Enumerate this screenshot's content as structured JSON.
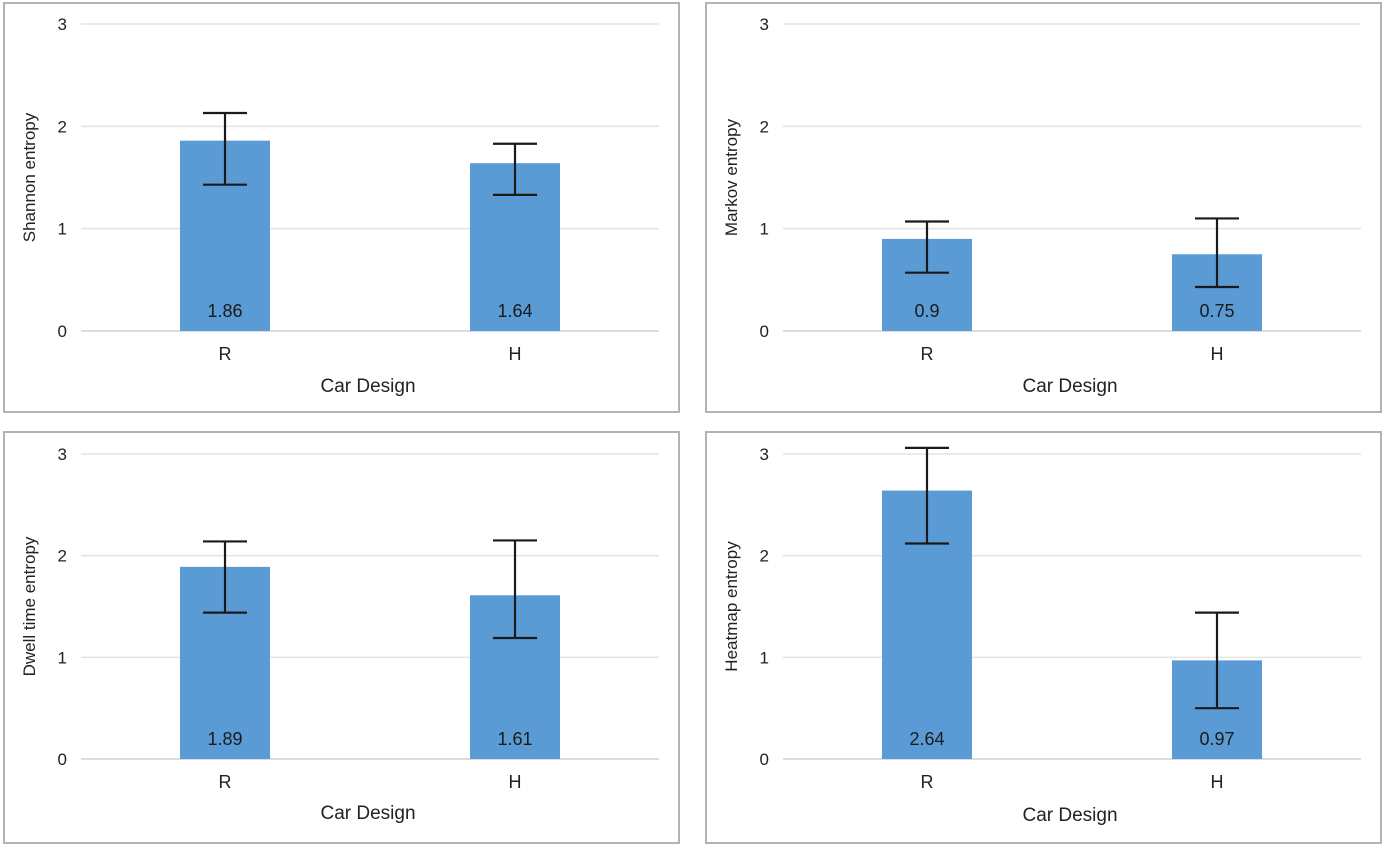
{
  "chart_data": [
    {
      "type": "bar",
      "categories": [
        "R",
        "H"
      ],
      "values": [
        1.86,
        1.64
      ],
      "data_labels": [
        "1.86",
        "1.64"
      ],
      "error_bars": [
        {
          "low": 1.43,
          "high": 2.13
        },
        {
          "low": 1.33,
          "high": 1.83
        }
      ],
      "xlabel": "Car Design",
      "ylabel": "Shannon entropy",
      "ylim": [
        0,
        3
      ],
      "yticks": [
        "0",
        "1",
        "2",
        "3"
      ],
      "grid": true,
      "bar_color": "#5b9bd5"
    },
    {
      "type": "bar",
      "categories": [
        "R",
        "H"
      ],
      "values": [
        0.9,
        0.75
      ],
      "data_labels": [
        "0.9",
        "0.75"
      ],
      "error_bars": [
        {
          "low": 0.57,
          "high": 1.07
        },
        {
          "low": 0.43,
          "high": 1.1
        }
      ],
      "xlabel": "Car Design",
      "ylabel": "Markov entropy",
      "ylim": [
        0,
        3
      ],
      "yticks": [
        "0",
        "1",
        "2",
        "3"
      ],
      "grid": true,
      "bar_color": "#5b9bd5"
    },
    {
      "type": "bar",
      "categories": [
        "R",
        "H"
      ],
      "values": [
        1.89,
        1.61
      ],
      "data_labels": [
        "1.89",
        "1.61"
      ],
      "error_bars": [
        {
          "low": 1.44,
          "high": 2.14
        },
        {
          "low": 1.19,
          "high": 2.15
        }
      ],
      "xlabel": "Car Design",
      "ylabel": "Dwell time entropy",
      "ylim": [
        0,
        3
      ],
      "yticks": [
        "0",
        "1",
        "2",
        "3"
      ],
      "grid": true,
      "bar_color": "#5b9bd5"
    },
    {
      "type": "bar",
      "categories": [
        "R",
        "H"
      ],
      "values": [
        2.64,
        0.97
      ],
      "data_labels": [
        "2.64",
        "0.97"
      ],
      "error_bars": [
        {
          "low": 2.12,
          "high": 3.06
        },
        {
          "low": 0.5,
          "high": 1.44
        }
      ],
      "xlabel": "Car Design",
      "ylabel": "Heatmap entropy",
      "ylim": [
        0,
        3
      ],
      "yticks": [
        "0",
        "1",
        "2",
        "3"
      ],
      "grid": true,
      "bar_color": "#5b9bd5"
    }
  ]
}
